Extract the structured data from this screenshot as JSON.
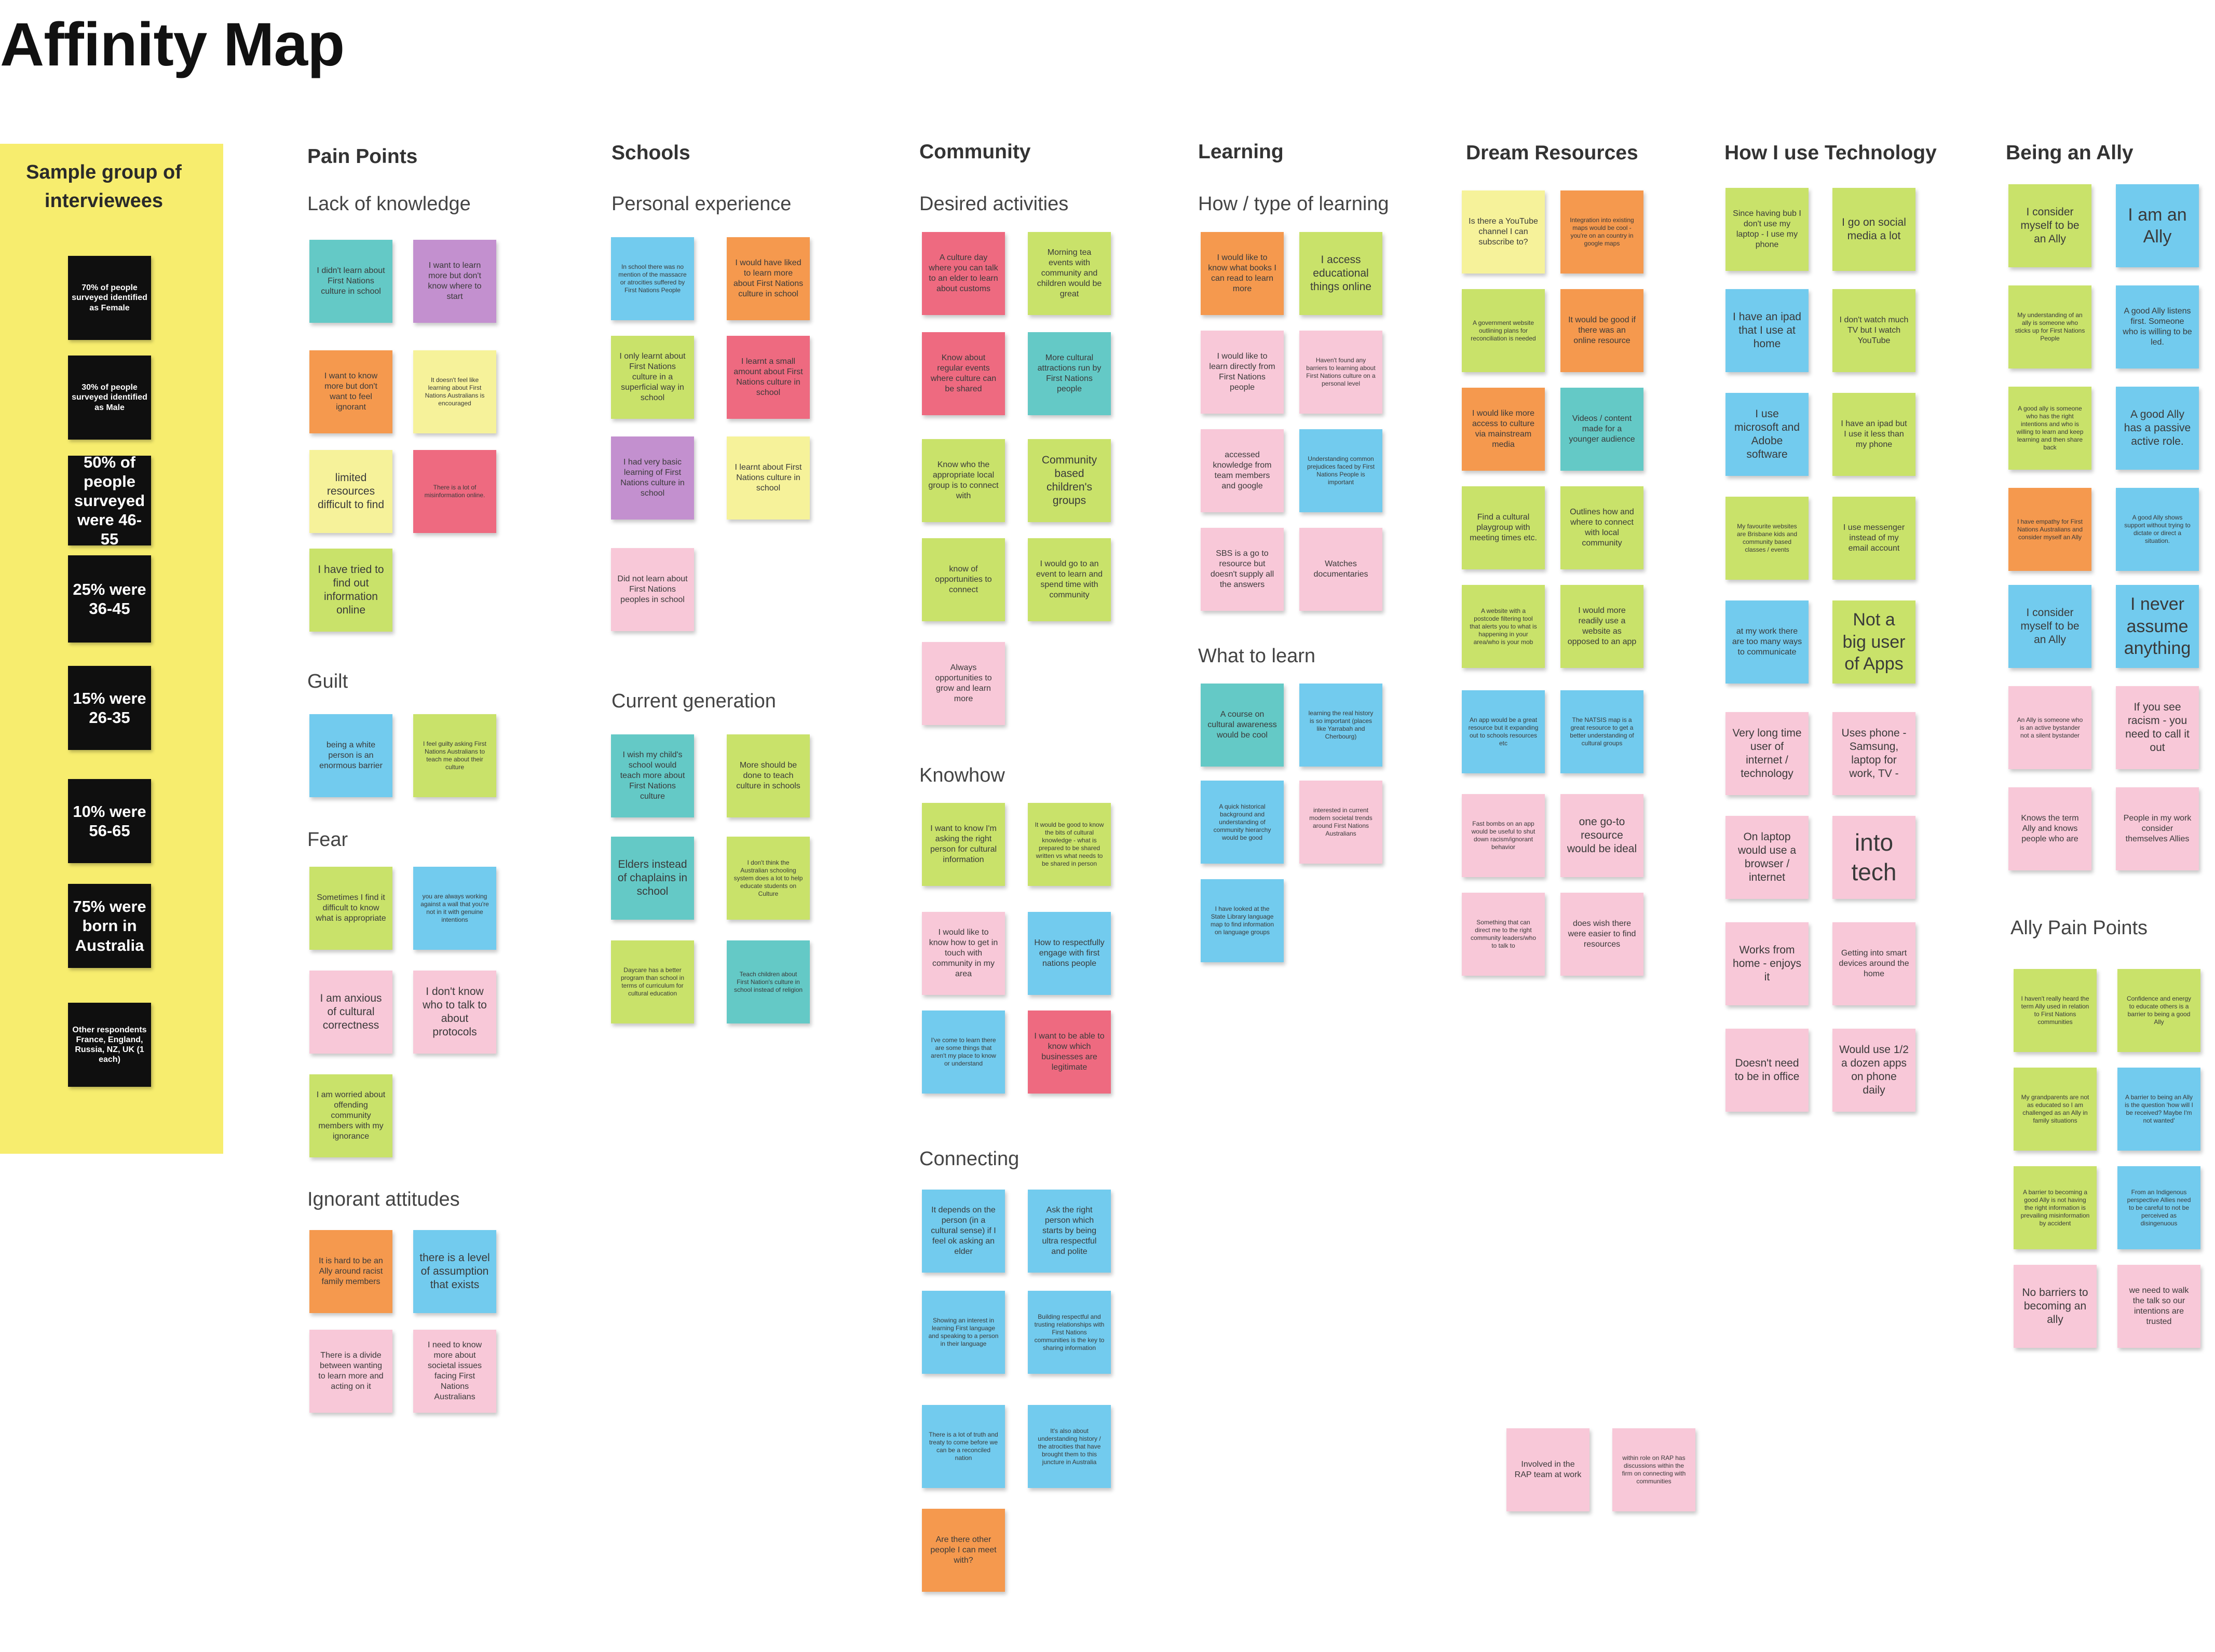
{
  "page": {
    "title": "Affinity Map"
  },
  "sample_group": {
    "heading": "Sample group of interviewees",
    "stats": [
      "70% of people surveyed identified as Female",
      "30% of people surveyed identified as Male",
      "50% of people surveyed were 46-55",
      "25% were 36-45",
      "15% were 26-35",
      "10% were 56-65",
      "75% were born in Australia",
      "Other respondents France, England, Russia, NZ, UK (1 each)"
    ]
  },
  "categories": {
    "pain_points": "Pain Points",
    "schools": "Schools",
    "community": "Community",
    "learning": "Learning",
    "dream_resources": "Dream Resources",
    "technology": "How I use Technology",
    "ally": "Being an Ally"
  },
  "subheadings": {
    "lack_of_knowledge": "Lack of knowledge",
    "guilt": "Guilt",
    "fear": "Fear",
    "ignorant_attitudes": "Ignorant attitudes",
    "personal_experience": "Personal experience",
    "current_generation": "Current generation",
    "desired_activities": "Desired activities",
    "knowhow": "Knowhow",
    "connecting": "Connecting",
    "how_type_of_learning": "How / type of learning",
    "what_to_learn": "What to learn",
    "ally_pain_points": "Ally Pain Points"
  },
  "notes": {
    "lk1": "I didn't learn about First Nations culture in school",
    "lk2": "I want to learn more but don't know where to start",
    "lk3": "I want to know more but don't want to feel ignorant",
    "lk4": "It doesn't feel like learning about First Nations Australians is encouraged",
    "lk5": "limited resources difficult to find",
    "lk6": "There is a lot of misinformation online.",
    "lk7": "I have tried to find out information online",
    "g1": "being a white person is an enormous barrier",
    "g2": "I feel guilty asking First Nations Australians to teach me about their culture",
    "f1": "Sometimes I find it difficult to know what is appropriate",
    "f2": "you are always working against a wall that you're not in it with genuine intentions",
    "f3": "I am anxious of cultural correctness",
    "f4": "I don't know who to talk to about protocols",
    "f5": "I am worried about offending community members with my ignorance",
    "ia1": "It is hard to be an Ally around racist family members",
    "ia2": "there is a level of assumption that exists",
    "ia3": "There is a divide between wanting to learn more and acting on it",
    "ia4": "I need to know more about societal issues facing First Nations Australians",
    "pe1": "In school there was no mention of the massacre or atrocities suffered by First Nations People",
    "pe2": "I would have liked to learn more about First Nations culture in school",
    "pe3": "I only learnt about First Nations culture in a superficial way in school",
    "pe4": "I learnt a small amount about First Nations culture in school",
    "pe5": "I had very basic learning of First Nations culture in school",
    "pe6": "I learnt about First Nations culture in school",
    "pe7": "Did not learn about First Nations peoples in school",
    "cg1": "I wish my child's school would teach more about First Nations culture",
    "cg2": "More should be done to teach culture in schools",
    "cg3": "Elders instead of chaplains in school",
    "cg4": "I don't think the Australian schooling system does a lot to help educate students on Culture",
    "cg5": "Daycare has a better program than school in terms of curriculum for cultural education",
    "cg6": "Teach children about First Nation's culture in school instead of religion",
    "da1": "A culture day where you can talk to an elder to learn about customs",
    "da2": "Morning tea events with community and children would be great",
    "da3": "Know about regular events where culture can be shared",
    "da4": "More cultural attractions run by First Nations people",
    "da5": "Know who the appropriate local group is to connect with",
    "da6": "Community based children's groups",
    "da7": "know of opportunities to connect",
    "da8": "I would go to an event to learn and spend time with community",
    "da9": "Always opportunities to grow and learn more",
    "kh1": "I want to know I'm asking the right person for cultural information",
    "kh2": "It would be good to know the bits of cultural knowledge - what is prepared to be shared written vs what needs to be shared in person",
    "kh3": "I would like to know how to get in touch with community in my area",
    "kh4": "How to respectfully engage with first nations people",
    "kh5": "I've come to learn there are some things that aren't my place to know or understand",
    "kh6": "I want to be able to know which businesses are legitimate",
    "cn1": "It depends on the person (in a cultural sense) if I feel ok asking an elder",
    "cn2": "Ask the right person which starts by being ultra respectful and polite",
    "cn3": "Showing an interest in learning First language and speaking to a person in their language",
    "cn4": "Building respectful and trusting relationships with First Nations communities is the key to sharing information",
    "cn5": "There is a lot of truth and treaty to come before we can be a reconciled nation",
    "cn6": "It's also about understanding history / the atrocities that have brought them to this juncture in Australia",
    "cn7": "Are there other people I can meet with?",
    "ht1": "I would like to know what books I can read to learn more",
    "ht2": "I access educational things online",
    "ht3": "I would like to learn directly from First Nations people",
    "ht4": "Haven't found any barriers to learning about First Nations culture on a personal level",
    "ht5": "accessed knowledge from team members and google",
    "ht6": "Understanding common prejudices faced by First Nations People is important",
    "ht7": "SBS is a go to resource but doesn't supply all the answers",
    "ht8": "Watches documentaries",
    "wl1": "A course on cultural awareness would be cool",
    "wl2": "learning the real history is so important (places like Yarrabah and Cherbourg)",
    "wl3": "A quick historical background and understanding of community hierarchy would be good",
    "wl4": "interested in current modern societal trends around First Nations Australians",
    "wl5": "I have looked at the State Library language map to find information on language groups",
    "dr1": "Is there a YouTube channel I can subscribe to?",
    "dr2": "Integration into existing maps would be cool - you're on an country in google maps",
    "dr3": "A government website outlining plans for reconciliation is needed",
    "dr4": "It would be good if there was an online resource",
    "dr5": "I would like more access to culture via mainstream media",
    "dr6": "Videos / content made for a younger audience",
    "dr7": "Find a cultural playgroup with meeting times etc.",
    "dr8": "Outlines how and where to connect with local community",
    "dr9": "A website with a postcode filtering tool that alerts you to what is happening in your area/who is your mob",
    "dr10": "I would more readily use a website as opposed to an app",
    "dr11": "An app would be a great resource but it expanding out to schools resources etc",
    "dr12": "The NATSIS map is a great resource to get a better understanding of cultural groups",
    "dr13": "Fast bombs on an app would be useful to shut down racism/ignorant behavior",
    "dr14": "one go-to resource would be ideal",
    "dr15": "Something that can direct me to the right community leaders/who to talk to",
    "dr16": "does wish there were easier to find resources",
    "dr17": "Involved in the RAP team at work",
    "dr18": "within role on RAP has discussions within the firm on connecting with communities",
    "tc1": "Since having bub I don't use my laptop - I use my phone",
    "tc2": "I go on social media a lot",
    "tc3": "I have an ipad that I use at home",
    "tc4": "I don't watch much TV but I watch YouTube",
    "tc5": "I use microsoft and Adobe software",
    "tc6": "I have an ipad but I use it less than my phone",
    "tc7": "My favourite websites are Brisbane kids and community based classes / events",
    "tc8": "I use messenger instead of my email account",
    "tc9": "at my work there are too many ways to communicate",
    "tc10": "Not a big user of Apps",
    "tc11": "Very long time user of internet / technology",
    "tc12": "Uses phone - Samsung, laptop for work, TV -",
    "tc13": "On laptop would use a browser / internet",
    "tc14": "into tech",
    "tc15": "Works from home - enjoys it",
    "tc16": "Getting into smart devices around the home",
    "tc17": "Doesn't need to be in office",
    "tc18": "Would use 1/2 a dozen apps on phone daily",
    "al1": "I consider myself to be an Ally",
    "al2": "I am an Ally",
    "al3": "My understanding of an ally is someone who sticks up for First Nations People",
    "al4": "A good Ally listens first. Someone who is willing to be led.",
    "al5": "A good ally is someone who has the right intentions and who is willing to learn and keep learning and then share back",
    "al6": "A good Ally has a passive active role.",
    "al7": "I have empathy for First Nations Australians and consider myself an Ally",
    "al8": "A good Ally shows support without trying to dictate or direct a situation.",
    "al9": "I consider myself to be an Ally",
    "al10": "I never assume anything",
    "al11": "An Ally is someone who is an active bystander not a silent bystander",
    "al12": "If you see racism - you need to call it out",
    "al13": "Knows the term Ally and knows people who are",
    "al14": "People in my work consider themselves Allies",
    "ap1": "I haven't really heard the term Ally used in relation to First Nations communities",
    "ap2": "Confidence and energy to educate others is a barrier to being a good Ally",
    "ap3": "My grandparents are not as educated so I am challenged as an Ally in family situations",
    "ap4": "A barrier to being an Ally is the question 'how will I be received? Maybe I'm not wanted'",
    "ap5": "A barrier to becoming a good Ally is not having the right information is prevailing misinformation by accident",
    "ap6": "From an Indigenous perspective Allies need to be careful to not be perceived as disingenuous",
    "ap7": "No barriers to becoming an ally",
    "ap8": "we need to walk the talk so our intentions are trusted"
  }
}
